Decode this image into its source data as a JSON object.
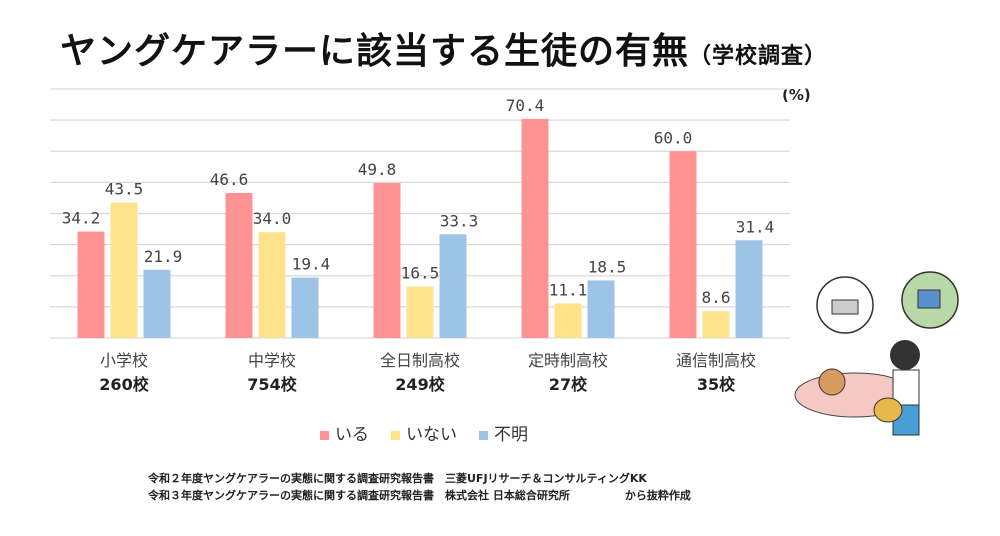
{
  "title": "ヤングケアラーに該当する生徒の有無",
  "subtitle": "（学校調査）",
  "chart_data": {
    "type": "bar",
    "title": "ヤングケアラーに該当する生徒の有無（学校調査）",
    "unit": "(%)",
    "categories": [
      "小学校",
      "中学校",
      "全日制高校",
      "定時制高校",
      "通信制高校"
    ],
    "category_counts": [
      "260校",
      "754校",
      "249校",
      "27校",
      "35校"
    ],
    "series": [
      {
        "name": "いる",
        "color": "#ff9393",
        "values": [
          34.2,
          46.6,
          49.8,
          70.4,
          60.0
        ]
      },
      {
        "name": "いない",
        "color": "#ffe28c",
        "values": [
          43.5,
          34.0,
          16.5,
          11.1,
          8.6
        ]
      },
      {
        "name": "不明",
        "color": "#9dc3e6",
        "values": [
          21.9,
          19.4,
          33.3,
          18.5,
          31.4
        ]
      }
    ],
    "ylim": [
      0,
      80
    ],
    "grid": true,
    "legend_position": "bottom"
  },
  "footer": [
    "令和２年度ヤングケアラーの実態に関する調査研究報告書　三菱UFJリサーチ＆コンサルティングKK",
    "令和３年度ヤングケアラーの実態に関する調査研究報告書　株式会社 日本総合研究所　　　　　から抜粋作成"
  ]
}
